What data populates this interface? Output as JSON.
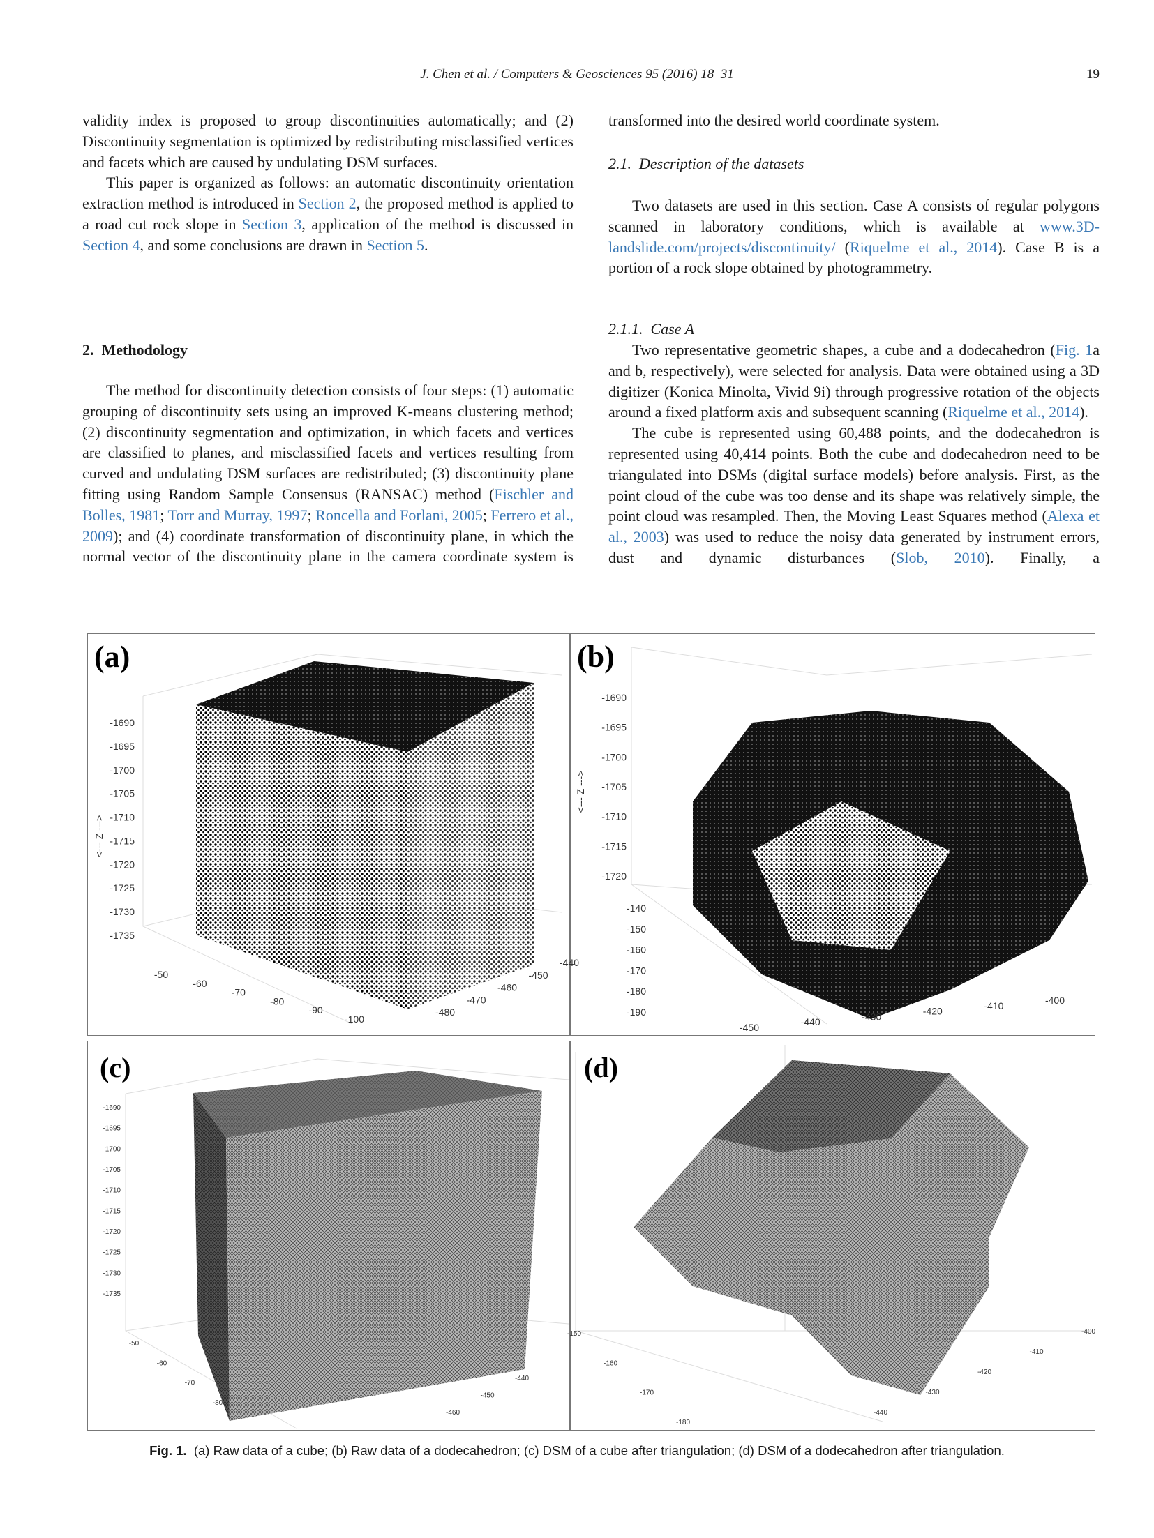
{
  "header": {
    "running_title": "J. Chen et al. / Computers & Geosciences 95 (2016) 18–31",
    "page_number": "19"
  },
  "left_column": {
    "paragraphs": [
      {
        "segments": [
          "validity index is proposed to group discontinuities automatically; and (2) Discontinuity segmentation is optimized by redistributing misclassified vertices and facets which are caused by undulating DSM surfaces."
        ]
      },
      {
        "segments": [
          "This paper is organized as follows: an automatic discontinuity orientation extraction method is introduced in ",
          {
            "link": "Section 2"
          },
          ", the proposed method is applied to a road cut rock slope in ",
          {
            "link": "Section 3"
          },
          ", application of the method is discussed in ",
          {
            "link": "Section 4"
          },
          ", and some conclusions are drawn in ",
          {
            "link": "Section 5"
          },
          "."
        ]
      }
    ],
    "section_heading": {
      "number": "2.",
      "title": "Methodology"
    },
    "methodology_paragraph": {
      "segments": [
        "The method for discontinuity detection consists of four steps: (1) automatic grouping of discontinuity sets using an improved K-means clustering method; (2) discontinuity segmentation and optimization, in which facets and vertices are classified to planes, and misclassified facets and vertices resulting from curved and undulating DSM surfaces are redistributed; (3) discontinuity plane fitting using Random Sample Consensus (RANSAC) method (",
        {
          "link": "Fischler and Bolles, 1981"
        },
        "; ",
        {
          "link": "Torr and Murray, 1997"
        },
        "; ",
        {
          "link": "Roncella and Forlani, 2005"
        },
        "; ",
        {
          "link": "Ferrero et al., 2009"
        },
        "); and (4) coordinate transformation of discontinuity plane, in which the normal vector of the discontinuity plane in the camera coordinate system is"
      ]
    }
  },
  "right_column": {
    "continuation": {
      "segments": [
        "transformed into the desired world coordinate system."
      ]
    },
    "subsection_heading": {
      "number": "2.1.",
      "title": "Description of the datasets"
    },
    "datasets_paragraph": {
      "segments": [
        "Two datasets are used in this section. Case A consists of regular polygons scanned in laboratory conditions, which is available at ",
        {
          "link": "www.3D-landslide.com/projects/discontinuity/"
        },
        " (",
        {
          "link": "Riquelme et al., 2014"
        },
        "). Case B is a portion of a rock slope obtained by photogrammetry."
      ]
    },
    "subsubsection_heading": {
      "number": "2.1.1.",
      "title": "Case A"
    },
    "paragraphs": [
      {
        "segments": [
          "Two representative geometric shapes, a cube and a dodecahedron (",
          {
            "link": "Fig. 1"
          },
          "a and b, respectively), were selected for analysis. Data were obtained using a 3D digitizer (Konica Minolta, Vivid 9i) through progressive rotation of the objects around a fixed platform axis and subsequent scanning (",
          {
            "link": "Riquelme et al., 2014"
          },
          ")."
        ]
      },
      {
        "segments": [
          "The cube is represented using 60,488 points, and the dodecahedron is represented using 40,414 points. Both the cube and dodecahedron need to be triangulated into DSMs (digital surface models) before analysis. First, as the point cloud of the cube was too dense and its shape was relatively simple, the point cloud was resampled. Then, the Moving Least Squares method (",
          {
            "link": "Alexa et al., 2003"
          },
          ") was used to reduce the noisy data generated by instrument errors, dust and dynamic disturbances (",
          {
            "link": "Slob, 2010"
          },
          "). Finally, a"
        ]
      }
    ]
  },
  "figure": {
    "panels": [
      {
        "label": "(a)",
        "z_axis_label": "<--- Z --->",
        "z_ticks": [
          "-1690",
          "-1695",
          "-1700",
          "-1705",
          "-1710",
          "-1715",
          "-1720",
          "-1725",
          "-1730",
          "-1735"
        ],
        "x_ticks": [
          "-50",
          "-60",
          "-70",
          "-80",
          "-90",
          "-100"
        ],
        "y_ticks": [
          "-440",
          "-450",
          "-460",
          "-470",
          "-480"
        ]
      },
      {
        "label": "(b)",
        "z_axis_label": "<--- Z --->",
        "z_ticks": [
          "-1690",
          "-1695",
          "-1700",
          "-1705",
          "-1710",
          "-1715",
          "-1720"
        ],
        "y_ticks": [
          "-140",
          "-150",
          "-160",
          "-170",
          "-180",
          "-190"
        ],
        "x_ticks": [
          "-450",
          "-440",
          "-430",
          "-420",
          "-410",
          "-400"
        ]
      },
      {
        "label": "(c)",
        "z_ticks": [
          "-1690",
          "-1695",
          "-1700",
          "-1705",
          "-1710",
          "-1715",
          "-1720",
          "-1725",
          "-1730",
          "-1735"
        ],
        "x_ticks": [
          "-50",
          "-60",
          "-70",
          "-80"
        ],
        "y_ticks": [
          "-440",
          "-450",
          "-460"
        ]
      },
      {
        "label": "(d)",
        "y_ticks": [
          "-150",
          "-160",
          "-170",
          "-180"
        ],
        "x_ticks": [
          "-400",
          "-410",
          "-420",
          "-430",
          "-440"
        ]
      }
    ],
    "caption": {
      "label": "Fig. 1.",
      "text": "(a) Raw data of a cube; (b) Raw data of a dodecahedron; (c) DSM of a cube after triangulation; (d) DSM of a dodecahedron after triangulation."
    }
  }
}
